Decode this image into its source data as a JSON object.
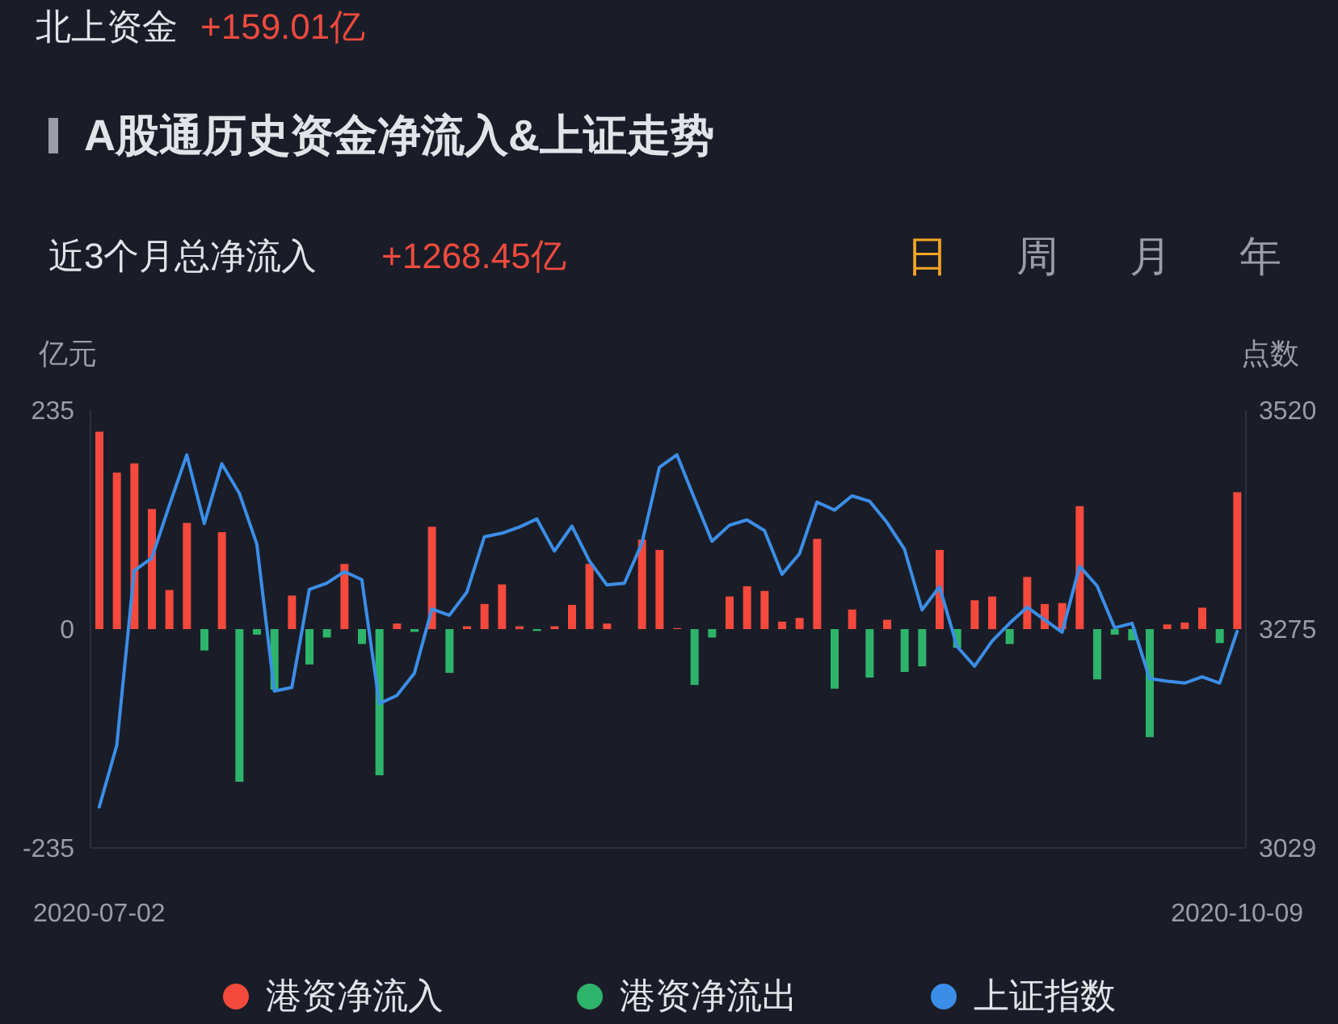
{
  "chart_data": {
    "type": "bar",
    "title": "A股通历史资金净流入&上证走势",
    "annotations": [
      "北上资金",
      "+159.01亿",
      "近3个月总净流入",
      "+1268.45亿",
      "日",
      "周",
      "月",
      "年"
    ],
    "ylabel": "亿元",
    "y2label": "点数",
    "categories": [
      "2020-07-02",
      null,
      null,
      null,
      null,
      null,
      null,
      null,
      null,
      null,
      null,
      null,
      null,
      null,
      null,
      null,
      null,
      null,
      null,
      null,
      null,
      null,
      null,
      null,
      null,
      null,
      null,
      null,
      null,
      null,
      null,
      null,
      null,
      null,
      null,
      null,
      null,
      null,
      null,
      null,
      null,
      null,
      null,
      null,
      null,
      null,
      null,
      null,
      null,
      null,
      null,
      null,
      null,
      null,
      null,
      null,
      null,
      null,
      null,
      null,
      null,
      null,
      null,
      null,
      null,
      "2020-10-09"
    ],
    "series": [
      {
        "name": "港资净流入",
        "color": "#f4493c",
        "values": [
          212,
          168,
          178,
          129,
          42,
          114,
          null,
          104,
          null,
          null,
          null,
          36,
          null,
          null,
          70,
          null,
          null,
          6,
          null,
          110,
          null,
          3,
          27,
          48,
          3,
          null,
          3,
          26,
          70,
          6,
          null,
          96,
          85,
          1,
          null,
          null,
          35,
          46,
          41,
          8,
          12,
          97,
          null,
          21,
          null,
          10,
          null,
          null,
          85,
          null,
          31,
          35,
          null,
          56,
          27,
          28,
          132,
          null,
          null,
          null,
          null,
          5,
          7,
          23,
          null,
          147
        ]
      },
      {
        "name": "港资净流出",
        "color": "#2eb46a",
        "values": [
          null,
          null,
          null,
          null,
          null,
          null,
          -23,
          null,
          -164,
          -6,
          -65,
          null,
          -38,
          -9,
          null,
          -16,
          -157,
          null,
          -3,
          null,
          -47,
          null,
          null,
          null,
          null,
          -2,
          null,
          null,
          null,
          null,
          null,
          null,
          null,
          null,
          -60,
          -9,
          null,
          null,
          null,
          null,
          null,
          null,
          -64,
          null,
          -52,
          null,
          -46,
          -40,
          null,
          -20,
          null,
          null,
          -16,
          null,
          null,
          null,
          null,
          -54,
          -6,
          -12,
          -116,
          null,
          null,
          null,
          -15,
          null
        ]
      },
      {
        "name": "上证指数",
        "type": "line",
        "axis": "y2",
        "color": "#3b8ee8",
        "values": [
          3075,
          3144,
          3340,
          3354,
          3413,
          3470,
          3393,
          3460,
          3427,
          3370,
          3205,
          3209,
          3319,
          3326,
          3339,
          3330,
          3191,
          3200,
          3225,
          3297,
          3290,
          3316,
          3378,
          3382,
          3389,
          3398,
          3362,
          3390,
          3351,
          3324,
          3326,
          3371,
          3456,
          3470,
          3421,
          3373,
          3391,
          3397,
          3385,
          3336,
          3359,
          3417,
          3408,
          3424,
          3418,
          3394,
          3364,
          3296,
          3322,
          3255,
          3233,
          3261,
          3281,
          3299,
          3285,
          3271,
          3345,
          3323,
          3276,
          3281,
          3219,
          3216,
          3214,
          3221,
          3214,
          3272
        ]
      }
    ],
    "stacked": true,
    "ylim": [
      -235,
      235
    ],
    "yticks": [
      -235,
      0,
      235
    ],
    "y2lim": [
      3029,
      3520
    ],
    "y2ticks": [
      3029,
      3275,
      3520
    ],
    "legend": "bottom",
    "marker": "none",
    "line_style": "solid"
  }
}
